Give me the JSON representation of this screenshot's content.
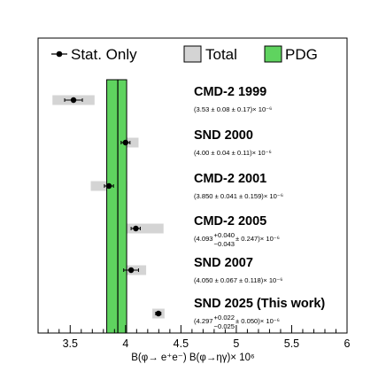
{
  "chart_data": {
    "type": "scatter",
    "subtype": "forest-plot",
    "xlabel": "B(φ→ e⁺e⁻) B(φ→ηγ)× 10⁶",
    "xlim": [
      3.21,
      6.0
    ],
    "xticks": [
      "3.5",
      "4",
      "4.5",
      "5",
      "5.5",
      "6"
    ],
    "legend": {
      "placement": "top",
      "entries": [
        {
          "label": "Stat. Only",
          "marker": "point-with-errorbar"
        },
        {
          "label": "Total",
          "marker": "gray-box"
        },
        {
          "label": "PDG",
          "marker": "green-box"
        }
      ]
    },
    "pdg_band": {
      "center": 3.93,
      "low": 3.83,
      "high": 4.01,
      "color": "#5fd35f"
    },
    "colors": {
      "total_band": "#d4d4d4",
      "pdg_band": "#5fd35f",
      "points": "#000000"
    },
    "measurements": [
      {
        "name": "CMD-2 1999",
        "value_text": "(3.53 ± 0.08 ± 0.17)× 10⁻⁶",
        "value": 3.53,
        "stat_err": 0.08,
        "total_err": 0.19
      },
      {
        "name": "SND 2000",
        "value_text": "(4.00 ± 0.04 ± 0.11)× 10⁻⁶",
        "value": 4.0,
        "stat_err": 0.04,
        "total_err": 0.117
      },
      {
        "name": "CMD-2 2001",
        "value_text": "(3.850 ± 0.041 ± 0.159)× 10⁻⁶",
        "value": 3.85,
        "stat_err": 0.041,
        "total_err": 0.164
      },
      {
        "name": "CMD-2 2005",
        "value_text_main": "(4.093",
        "value_text_up": "+0.040",
        "value_text_down": "−0.043",
        "value_text_rest": " ± 0.247)× 10⁻⁶",
        "value": 4.093,
        "stat_err_up": 0.04,
        "stat_err_down": 0.043,
        "total_err": 0.25
      },
      {
        "name": "SND 2007",
        "value_text": "(4.050 ± 0.067 ± 0.118)× 10⁻⁶",
        "value": 4.05,
        "stat_err": 0.067,
        "total_err": 0.136
      },
      {
        "name": "SND 2025 (This work)",
        "value_text_main": "(4.297",
        "value_text_up": "+0.022",
        "value_text_down": "−0.025",
        "value_text_rest": " ± 0.050)× 10⁻⁶",
        "value": 4.297,
        "stat_err_up": 0.022,
        "stat_err_down": 0.025,
        "total_err": 0.055
      }
    ]
  }
}
